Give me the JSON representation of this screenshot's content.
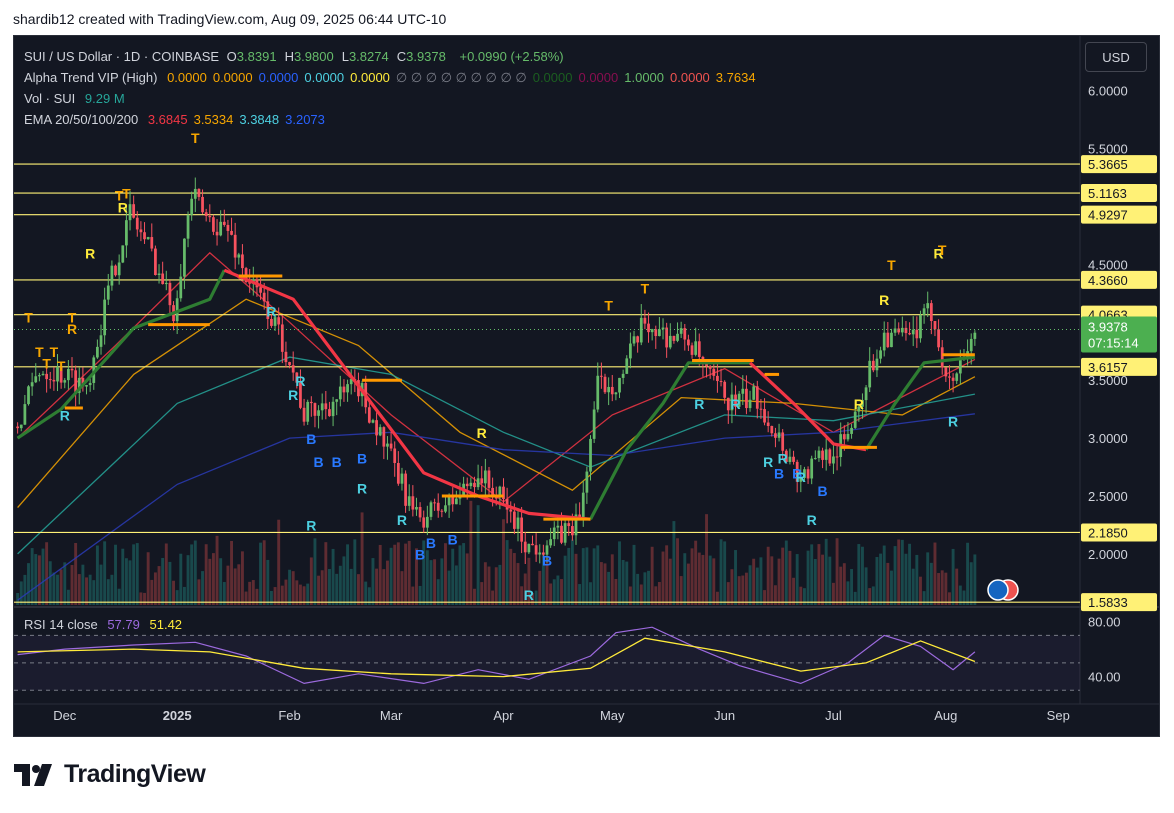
{
  "header": {
    "credit": "shardib12 created with TradingView.com, Aug 09, 2025 06:44 UTC-10"
  },
  "legend": {
    "title": "SUI / US Dollar · 1D · COINBASE",
    "ohlc": [
      {
        "k": "O",
        "v": "3.8391"
      },
      {
        "k": "H",
        "v": "3.9800"
      },
      {
        "k": "L",
        "v": "3.8274"
      },
      {
        "k": "C",
        "v": "3.9378"
      }
    ],
    "change": "+0.0990 (+2.58%)",
    "alpha_label": "Alpha Trend VIP (High)",
    "alpha_values": [
      {
        "v": "0.0000",
        "c": "#f7a600"
      },
      {
        "v": "0.0000",
        "c": "#f7a600"
      },
      {
        "v": "0.0000",
        "c": "#2962ff"
      },
      {
        "v": "0.0000",
        "c": "#4dd0e1"
      },
      {
        "v": "0.0000",
        "c": "#ffeb3b"
      },
      {
        "v": "∅ ∅ ∅ ∅ ∅ ∅ ∅ ∅ ∅",
        "c": "#787b86"
      },
      {
        "v": "0.0000",
        "c": "#1b5e20"
      },
      {
        "v": "0.0000",
        "c": "#880e4f"
      },
      {
        "v": "1.0000",
        "c": "#66bb6a"
      },
      {
        "v": "0.0000",
        "c": "#ef5350"
      },
      {
        "v": "3.7634",
        "c": "#f7a600"
      }
    ],
    "vol_label": "Vol · SUI",
    "vol_value": "9.29 M",
    "ema_label": "EMA 20/50/100/200",
    "ema_values": [
      {
        "v": "3.6845",
        "c": "#f23645"
      },
      {
        "v": "3.5334",
        "c": "#f7a600"
      },
      {
        "v": "3.3848",
        "c": "#4dd0e1"
      },
      {
        "v": "3.2073",
        "c": "#2962ff"
      }
    ]
  },
  "rsi_legend": {
    "label": "RSI 14 close",
    "v1": "57.79",
    "v2": "51.42"
  },
  "currency_button": "USD",
  "brand": {
    "name": "TradingView"
  },
  "colors": {
    "background": "#131722",
    "up": "#66bb6a",
    "down": "#f7525f",
    "level_line": "#fff176",
    "grid": "#1e222d",
    "axis_text": "#d1d4dc"
  },
  "chart_data": {
    "type": "candlestick",
    "title": "SUI / US Dollar · 1D · COINBASE",
    "price_axis_ticks": [
      2.0,
      2.5,
      3.0,
      3.5,
      4.5,
      5.5,
      6.0
    ],
    "ylim": [
      1.55,
      6.3
    ],
    "time_axis": {
      "range": [
        "2024-11-17",
        "2025-09-07"
      ],
      "labels": [
        {
          "text": "Dec",
          "date": "2024-12-01"
        },
        {
          "text": "2025",
          "date": "2025-01-01"
        },
        {
          "text": "Feb",
          "date": "2025-02-01"
        },
        {
          "text": "Mar",
          "date": "2025-03-01"
        },
        {
          "text": "Apr",
          "date": "2025-04-01"
        },
        {
          "text": "May",
          "date": "2025-05-01"
        },
        {
          "text": "Jun",
          "date": "2025-06-01"
        },
        {
          "text": "Jul",
          "date": "2025-07-01"
        },
        {
          "text": "Aug",
          "date": "2025-08-01"
        },
        {
          "text": "Sep",
          "date": "2025-09-01"
        }
      ]
    },
    "levels": [
      5.3665,
      5.1163,
      4.9297,
      4.366,
      4.0663,
      3.6157,
      2.185,
      1.5833
    ],
    "last_price": {
      "price": 3.9378,
      "text": "3.9378",
      "timer": "07:15:14"
    },
    "price_path": [
      [
        "2024-11-18",
        3.1
      ],
      [
        "2024-11-24",
        3.6
      ],
      [
        "2024-12-01",
        3.55
      ],
      [
        "2024-12-07",
        3.45
      ],
      [
        "2024-12-14",
        4.4
      ],
      [
        "2024-12-19",
        4.95
      ],
      [
        "2024-12-25",
        4.6
      ],
      [
        "2024-12-31",
        4.1
      ],
      [
        "2025-01-05",
        5.1
      ],
      [
        "2025-01-09",
        4.9
      ],
      [
        "2025-01-15",
        4.8
      ],
      [
        "2025-01-20",
        4.4
      ],
      [
        "2025-01-26",
        4.1
      ],
      [
        "2025-02-01",
        3.7
      ],
      [
        "2025-02-05",
        3.2
      ],
      [
        "2025-02-12",
        3.3
      ],
      [
        "2025-02-20",
        3.45
      ],
      [
        "2025-02-27",
        2.95
      ],
      [
        "2025-03-08",
        2.3
      ],
      [
        "2025-03-18",
        2.45
      ],
      [
        "2025-03-25",
        2.7
      ],
      [
        "2025-04-02",
        2.4
      ],
      [
        "2025-04-08",
        2.05
      ],
      [
        "2025-04-16",
        2.15
      ],
      [
        "2025-04-22",
        2.3
      ],
      [
        "2025-04-27",
        3.45
      ],
      [
        "2025-05-03",
        3.5
      ],
      [
        "2025-05-10",
        4.0
      ],
      [
        "2025-05-15",
        3.9
      ],
      [
        "2025-05-22",
        3.85
      ],
      [
        "2025-05-28",
        3.5
      ],
      [
        "2025-06-03",
        3.3
      ],
      [
        "2025-06-10",
        3.35
      ],
      [
        "2025-06-16",
        3.0
      ],
      [
        "2025-06-22",
        2.65
      ],
      [
        "2025-06-28",
        2.85
      ],
      [
        "2025-07-04",
        2.95
      ],
      [
        "2025-07-10",
        3.5
      ],
      [
        "2025-07-15",
        3.9
      ],
      [
        "2025-07-22",
        3.85
      ],
      [
        "2025-07-28",
        4.1
      ],
      [
        "2025-08-02",
        3.45
      ],
      [
        "2025-08-09",
        3.94
      ]
    ],
    "alpha_trend_segments": [
      {
        "color": "#2e7d32",
        "points": [
          [
            "2024-11-18",
            3.0
          ],
          [
            "2024-11-30",
            3.25
          ],
          [
            "2024-12-20",
            3.95
          ],
          [
            "2025-01-10",
            4.2
          ],
          [
            "2025-01-14",
            4.45
          ]
        ]
      },
      {
        "color": "#f23645",
        "points": [
          [
            "2025-01-14",
            4.45
          ],
          [
            "2025-02-02",
            4.2
          ],
          [
            "2025-02-20",
            3.45
          ],
          [
            "2025-03-10",
            2.7
          ],
          [
            "2025-03-25",
            2.5
          ],
          [
            "2025-04-08",
            2.35
          ],
          [
            "2025-04-25",
            2.3
          ]
        ]
      },
      {
        "color": "#2e7d32",
        "points": [
          [
            "2025-04-25",
            2.3
          ],
          [
            "2025-05-05",
            2.9
          ],
          [
            "2025-05-15",
            3.3
          ],
          [
            "2025-05-22",
            3.65
          ],
          [
            "2025-06-08",
            3.65
          ]
        ]
      },
      {
        "color": "#f23645",
        "points": [
          [
            "2025-06-08",
            3.65
          ],
          [
            "2025-06-20",
            3.3
          ],
          [
            "2025-07-01",
            2.95
          ],
          [
            "2025-07-10",
            2.9
          ]
        ]
      },
      {
        "color": "#2e7d32",
        "points": [
          [
            "2025-07-10",
            2.9
          ],
          [
            "2025-07-18",
            3.3
          ],
          [
            "2025-07-26",
            3.65
          ],
          [
            "2025-08-09",
            3.7
          ]
        ]
      }
    ],
    "ema_lines": [
      {
        "name": "EMA 20",
        "color": "#f23645",
        "points": [
          [
            "2024-11-18",
            3.0
          ],
          [
            "2024-12-15",
            3.8
          ],
          [
            "2025-01-10",
            4.6
          ],
          [
            "2025-02-01",
            4.0
          ],
          [
            "2025-03-01",
            3.2
          ],
          [
            "2025-04-01",
            2.45
          ],
          [
            "2025-05-01",
            3.2
          ],
          [
            "2025-06-01",
            3.6
          ],
          [
            "2025-07-01",
            3.05
          ],
          [
            "2025-08-09",
            3.68
          ]
        ]
      },
      {
        "name": "EMA 50",
        "color": "#f7a600",
        "points": [
          [
            "2024-11-18",
            2.4
          ],
          [
            "2024-12-20",
            3.55
          ],
          [
            "2025-01-20",
            4.2
          ],
          [
            "2025-02-20",
            3.8
          ],
          [
            "2025-03-20",
            3.05
          ],
          [
            "2025-04-20",
            2.55
          ],
          [
            "2025-05-20",
            3.35
          ],
          [
            "2025-06-20",
            3.3
          ],
          [
            "2025-07-20",
            3.2
          ],
          [
            "2025-08-09",
            3.53
          ]
        ]
      },
      {
        "name": "EMA 100",
        "color": "#26a69a",
        "points": [
          [
            "2024-11-18",
            2.0
          ],
          [
            "2025-01-01",
            3.3
          ],
          [
            "2025-02-01",
            3.7
          ],
          [
            "2025-03-01",
            3.55
          ],
          [
            "2025-04-01",
            3.05
          ],
          [
            "2025-04-25",
            2.75
          ],
          [
            "2025-06-01",
            3.2
          ],
          [
            "2025-07-01",
            3.15
          ],
          [
            "2025-08-09",
            3.38
          ]
        ]
      },
      {
        "name": "EMA 200",
        "color": "#2a3bb5",
        "points": [
          [
            "2024-11-18",
            1.6
          ],
          [
            "2025-01-01",
            2.6
          ],
          [
            "2025-02-01",
            3.0
          ],
          [
            "2025-03-01",
            3.05
          ],
          [
            "2025-04-01",
            2.9
          ],
          [
            "2025-05-01",
            2.85
          ],
          [
            "2025-06-01",
            3.0
          ],
          [
            "2025-07-01",
            3.05
          ],
          [
            "2025-08-09",
            3.21
          ]
        ]
      }
    ],
    "supply_demand_bars": [
      {
        "start": "2024-12-01",
        "end": "2024-12-06",
        "price": 3.26
      },
      {
        "start": "2024-12-24",
        "end": "2025-01-10",
        "price": 3.98
      },
      {
        "start": "2025-01-18",
        "end": "2025-01-30",
        "price": 4.4
      },
      {
        "start": "2025-02-21",
        "end": "2025-03-04",
        "price": 3.5
      },
      {
        "start": "2025-03-15",
        "end": "2025-04-01",
        "price": 2.5
      },
      {
        "start": "2025-04-12",
        "end": "2025-04-25",
        "price": 2.3
      },
      {
        "start": "2025-05-23",
        "end": "2025-06-09",
        "price": 3.67
      },
      {
        "start": "2025-06-12",
        "end": "2025-06-16",
        "price": 3.55
      },
      {
        "start": "2025-07-03",
        "end": "2025-07-13",
        "price": 2.92
      },
      {
        "start": "2025-07-31",
        "end": "2025-08-09",
        "price": 3.72
      }
    ],
    "signals": [
      {
        "text": "T",
        "date": "2024-11-21",
        "price": 4.0,
        "color": "#f7a600"
      },
      {
        "text": "T",
        "date": "2024-11-24",
        "price": 3.7,
        "color": "#f7a600"
      },
      {
        "text": "T",
        "date": "2024-11-26",
        "price": 3.6,
        "color": "#f7a600"
      },
      {
        "text": "T",
        "date": "2024-11-28",
        "price": 3.7,
        "color": "#f7a600"
      },
      {
        "text": "T",
        "date": "2024-11-30",
        "price": 3.58,
        "color": "#f7a600"
      },
      {
        "text": "T",
        "date": "2024-12-03",
        "price": 4.0,
        "color": "#f7a600"
      },
      {
        "text": "R",
        "date": "2024-12-03",
        "price": 3.9,
        "color": "#f7a600"
      },
      {
        "text": "R",
        "date": "2024-12-01",
        "price": 3.15,
        "color": "#4dd0e1"
      },
      {
        "text": "R",
        "date": "2024-12-08",
        "price": 4.55,
        "color": "#ffeb3b"
      },
      {
        "text": "T",
        "date": "2024-12-16",
        "price": 5.05,
        "color": "#f7a600"
      },
      {
        "text": "T",
        "date": "2024-12-18",
        "price": 5.07,
        "color": "#f7a600"
      },
      {
        "text": "R",
        "date": "2024-12-17",
        "price": 4.95,
        "color": "#ffeb3b"
      },
      {
        "text": "T",
        "date": "2025-01-06",
        "price": 5.55,
        "color": "#f7a600"
      },
      {
        "text": "R",
        "date": "2025-01-27",
        "price": 4.05,
        "color": "#4dd0e1"
      },
      {
        "text": "R",
        "date": "2025-02-04",
        "price": 3.45,
        "color": "#4dd0e1"
      },
      {
        "text": "R",
        "date": "2025-02-02",
        "price": 3.33,
        "color": "#4dd0e1"
      },
      {
        "text": "B",
        "date": "2025-02-07",
        "price": 2.95,
        "color": "#2979ff"
      },
      {
        "text": "B",
        "date": "2025-02-09",
        "price": 2.75,
        "color": "#2979ff"
      },
      {
        "text": "R",
        "date": "2025-02-07",
        "price": 2.2,
        "color": "#4dd0e1"
      },
      {
        "text": "B",
        "date": "2025-02-14",
        "price": 2.75,
        "color": "#2979ff"
      },
      {
        "text": "R",
        "date": "2025-02-21",
        "price": 2.52,
        "color": "#4dd0e1"
      },
      {
        "text": "B",
        "date": "2025-02-21",
        "price": 2.78,
        "color": "#2979ff"
      },
      {
        "text": "R",
        "date": "2025-03-04",
        "price": 2.25,
        "color": "#4dd0e1"
      },
      {
        "text": "B",
        "date": "2025-03-09",
        "price": 1.95,
        "color": "#2979ff"
      },
      {
        "text": "B",
        "date": "2025-03-12",
        "price": 2.05,
        "color": "#2979ff"
      },
      {
        "text": "B",
        "date": "2025-03-18",
        "price": 2.08,
        "color": "#2979ff"
      },
      {
        "text": "R",
        "date": "2025-03-26",
        "price": 3.0,
        "color": "#ffeb3b"
      },
      {
        "text": "B",
        "date": "2025-04-13",
        "price": 1.9,
        "color": "#2979ff"
      },
      {
        "text": "R",
        "date": "2025-04-08",
        "price": 1.6,
        "color": "#4dd0e1"
      },
      {
        "text": "T",
        "date": "2025-04-30",
        "price": 4.1,
        "color": "#f7a600"
      },
      {
        "text": "T",
        "date": "2025-05-10",
        "price": 4.25,
        "color": "#f7a600"
      },
      {
        "text": "R",
        "date": "2025-05-25",
        "price": 3.25,
        "color": "#4dd0e1"
      },
      {
        "text": "R",
        "date": "2025-06-04",
        "price": 3.25,
        "color": "#4dd0e1"
      },
      {
        "text": "R",
        "date": "2025-06-13",
        "price": 2.75,
        "color": "#4dd0e1"
      },
      {
        "text": "B",
        "date": "2025-06-16",
        "price": 2.65,
        "color": "#2979ff"
      },
      {
        "text": "R",
        "date": "2025-06-17",
        "price": 2.78,
        "color": "#4dd0e1"
      },
      {
        "text": "B",
        "date": "2025-06-21",
        "price": 2.65,
        "color": "#2979ff"
      },
      {
        "text": "R",
        "date": "2025-06-22",
        "price": 2.62,
        "color": "#4dd0e1"
      },
      {
        "text": "R",
        "date": "2025-06-25",
        "price": 2.25,
        "color": "#4dd0e1"
      },
      {
        "text": "B",
        "date": "2025-06-28",
        "price": 2.5,
        "color": "#2979ff"
      },
      {
        "text": "R",
        "date": "2025-07-08",
        "price": 3.25,
        "color": "#ffeb3b"
      },
      {
        "text": "R",
        "date": "2025-07-15",
        "price": 4.15,
        "color": "#ffeb3b"
      },
      {
        "text": "T",
        "date": "2025-07-17",
        "price": 4.45,
        "color": "#f7a600"
      },
      {
        "text": "R",
        "date": "2025-07-30",
        "price": 4.55,
        "color": "#ffeb3b"
      },
      {
        "text": "T",
        "date": "2025-07-31",
        "price": 4.58,
        "color": "#f7a600"
      },
      {
        "text": "R",
        "date": "2025-08-03",
        "price": 3.1,
        "color": "#4dd0e1"
      }
    ],
    "rsi": {
      "ticks": [
        80.0,
        40.0
      ],
      "levels": [
        70,
        50,
        30
      ],
      "ylim": [
        20,
        90
      ],
      "rsi_path": [
        [
          "2024-11-18",
          56
        ],
        [
          "2024-12-01",
          60
        ],
        [
          "2024-12-20",
          63
        ],
        [
          "2025-01-06",
          65
        ],
        [
          "2025-01-20",
          55
        ],
        [
          "2025-02-05",
          35
        ],
        [
          "2025-02-20",
          42
        ],
        [
          "2025-03-10",
          35
        ],
        [
          "2025-03-25",
          45
        ],
        [
          "2025-04-08",
          38
        ],
        [
          "2025-04-25",
          55
        ],
        [
          "2025-05-02",
          72
        ],
        [
          "2025-05-12",
          76
        ],
        [
          "2025-05-25",
          60
        ],
        [
          "2025-06-05",
          48
        ],
        [
          "2025-06-22",
          35
        ],
        [
          "2025-07-05",
          50
        ],
        [
          "2025-07-15",
          70
        ],
        [
          "2025-07-25",
          62
        ],
        [
          "2025-08-03",
          45
        ],
        [
          "2025-08-09",
          58
        ]
      ],
      "ma_path": [
        [
          "2024-11-18",
          58
        ],
        [
          "2024-12-20",
          60
        ],
        [
          "2025-01-10",
          58
        ],
        [
          "2025-02-05",
          46
        ],
        [
          "2025-03-01",
          42
        ],
        [
          "2025-04-01",
          40
        ],
        [
          "2025-04-25",
          46
        ],
        [
          "2025-05-10",
          68
        ],
        [
          "2025-06-01",
          58
        ],
        [
          "2025-06-22",
          44
        ],
        [
          "2025-07-10",
          50
        ],
        [
          "2025-07-25",
          66
        ],
        [
          "2025-08-09",
          51
        ]
      ]
    }
  }
}
